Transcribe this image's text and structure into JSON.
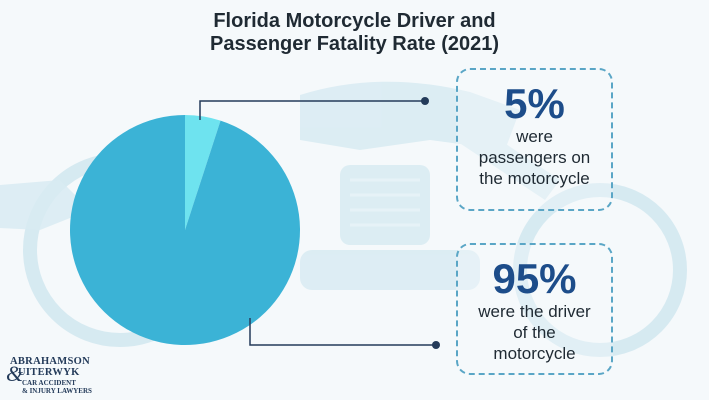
{
  "title": {
    "line1": "Florida Motorcycle Driver and",
    "line2": "Passenger Fatality Rate (2021)"
  },
  "chart_data": {
    "type": "pie",
    "title": "Florida Motorcycle Driver and Passenger Fatality Rate (2021)",
    "slices": [
      {
        "label": "were passengers on the motorcycle",
        "value": 5,
        "display": "5%",
        "color": "#6ee3ef"
      },
      {
        "label": "were the driver of the motorcycle",
        "value": 95,
        "display": "95%",
        "color": "#3bb3d6"
      }
    ]
  },
  "callouts": [
    {
      "value": "5%",
      "line1": "were",
      "line2": "passengers on",
      "line3": "the motorcycle"
    },
    {
      "value": "95%",
      "line1": "were the driver",
      "line2": "of the",
      "line3": "motorcycle"
    }
  ],
  "logo": {
    "line1": "ABRAHAMSON",
    "line2": "UITERWYK",
    "line3": "CAR ACCIDENT",
    "line4": "& INJURY LAWYERS",
    "ampersand": "&"
  },
  "colors": {
    "leader_line": "#243b5a",
    "card_border": "#5aa6c6",
    "percent_text": "#1d4d8a",
    "background": "#f5f9fb",
    "watermark": "#cfe6ef"
  },
  "icons": [
    "motorcycle-watermark-icon"
  ]
}
